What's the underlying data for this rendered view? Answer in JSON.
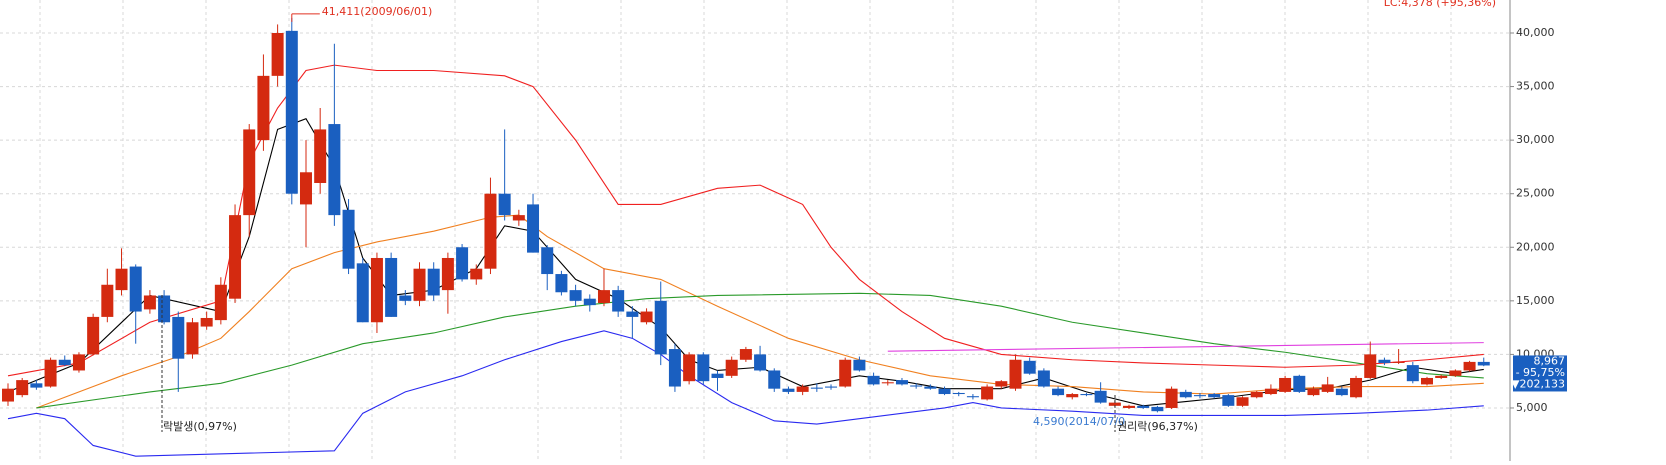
{
  "chart_data": {
    "type": "candlestick",
    "ylim": [
      50,
      43080
    ],
    "yticks": [
      {
        "value": 5000,
        "label": "5,000"
      },
      {
        "value": 10000,
        "label": "10,000"
      },
      {
        "value": 15000,
        "label": "15,000"
      },
      {
        "value": 20000,
        "label": "20,000"
      },
      {
        "value": 25000,
        "label": "25,000"
      },
      {
        "value": 30000,
        "label": "30,000"
      },
      {
        "value": 35000,
        "label": "35,000"
      },
      {
        "value": 40000,
        "label": "40,000"
      }
    ],
    "grid": true,
    "up_color": "#d42a10",
    "down_color": "#1a5fc0",
    "ohlc": [
      [
        5600,
        7300,
        5200,
        6800
      ],
      [
        6200,
        7800,
        6000,
        7600
      ],
      [
        7300,
        7600,
        6700,
        6900
      ],
      [
        7000,
        9700,
        6900,
        9500
      ],
      [
        9500,
        9900,
        8900,
        9000
      ],
      [
        8500,
        10200,
        8300,
        10000
      ],
      [
        10000,
        13800,
        9900,
        13500
      ],
      [
        13500,
        18000,
        13000,
        16500
      ],
      [
        16000,
        19900,
        15500,
        18000
      ],
      [
        18200,
        18400,
        11000,
        14000
      ],
      [
        14200,
        16000,
        13800,
        15500
      ],
      [
        15500,
        16000,
        12800,
        13000
      ],
      [
        13500,
        14000,
        6500,
        9600
      ],
      [
        10000,
        13400,
        9600,
        13000
      ],
      [
        12600,
        14000,
        12300,
        13400
      ],
      [
        13200,
        17200,
        12800,
        16500
      ],
      [
        15200,
        24000,
        14800,
        23000
      ],
      [
        23000,
        31500,
        21000,
        31000
      ],
      [
        30000,
        38000,
        29000,
        36000
      ],
      [
        36000,
        40800,
        35000,
        40000
      ],
      [
        40200,
        41411,
        24000,
        25000
      ],
      [
        24000,
        30000,
        20000,
        27000
      ],
      [
        26000,
        33000,
        25000,
        31000
      ],
      [
        31500,
        39000,
        22000,
        23000
      ],
      [
        23500,
        24500,
        17500,
        18000
      ],
      [
        18500,
        19000,
        13000,
        13000
      ],
      [
        13000,
        19500,
        12000,
        19000
      ],
      [
        19000,
        19500,
        13500,
        13500
      ],
      [
        15500,
        16000,
        14600,
        15000
      ],
      [
        15000,
        18600,
        14500,
        18000
      ],
      [
        18000,
        18600,
        15000,
        15500
      ],
      [
        16000,
        19500,
        13800,
        19000
      ],
      [
        20000,
        20300,
        16800,
        17000
      ],
      [
        17000,
        18400,
        16500,
        18000
      ],
      [
        18000,
        26500,
        17500,
        25000
      ],
      [
        25000,
        31000,
        22500,
        23000
      ],
      [
        22500,
        23500,
        22000,
        23000
      ],
      [
        24000,
        25000,
        19500,
        19500
      ],
      [
        20000,
        20200,
        16000,
        17500
      ],
      [
        17500,
        17800,
        15500,
        15800
      ],
      [
        16000,
        16500,
        14500,
        15000
      ],
      [
        15200,
        15600,
        14000,
        14600
      ],
      [
        14800,
        18000,
        14500,
        16000
      ],
      [
        16000,
        16400,
        13500,
        14000
      ],
      [
        14000,
        14500,
        11500,
        13500
      ],
      [
        13000,
        14300,
        12800,
        14000
      ],
      [
        15000,
        16800,
        9000,
        10000
      ],
      [
        10500,
        11000,
        6500,
        7000
      ],
      [
        7500,
        10200,
        7200,
        10000
      ],
      [
        10000,
        10200,
        7200,
        7500
      ],
      [
        8200,
        8500,
        6600,
        7800
      ],
      [
        8000,
        9800,
        7800,
        9500
      ],
      [
        9500,
        10700,
        9300,
        10500
      ],
      [
        10000,
        10800,
        8400,
        8500
      ],
      [
        8500,
        8700,
        6500,
        6800
      ],
      [
        6800,
        7000,
        6300,
        6500
      ],
      [
        6500,
        7200,
        6200,
        7000
      ],
      [
        6900,
        7300,
        6500,
        6800
      ],
      [
        7000,
        7200,
        6700,
        6900
      ],
      [
        7000,
        9700,
        6900,
        9500
      ],
      [
        9500,
        9800,
        8400,
        8500
      ],
      [
        8000,
        8300,
        7100,
        7200
      ],
      [
        7300,
        7600,
        7100,
        7400
      ],
      [
        7600,
        7800,
        7100,
        7200
      ],
      [
        7100,
        7300,
        6800,
        7000
      ],
      [
        7000,
        7200,
        6700,
        6800
      ],
      [
        6800,
        7000,
        6200,
        6300
      ],
      [
        6400,
        6500,
        6100,
        6300
      ],
      [
        6100,
        6300,
        5800,
        6000
      ],
      [
        5800,
        7200,
        5700,
        7000
      ],
      [
        7000,
        7600,
        6800,
        7500
      ],
      [
        6800,
        10000,
        6600,
        9500
      ],
      [
        9400,
        9700,
        8100,
        8200
      ],
      [
        8500,
        8700,
        6900,
        7000
      ],
      [
        6800,
        7000,
        6100,
        6200
      ],
      [
        6000,
        6400,
        5800,
        6300
      ],
      [
        6300,
        6400,
        6100,
        6200
      ],
      [
        6600,
        7400,
        5400,
        5500
      ],
      [
        5200,
        5700,
        5100,
        5500
      ],
      [
        5000,
        5300,
        4900,
        5200
      ],
      [
        5200,
        5300,
        4900,
        5000
      ],
      [
        5100,
        5200,
        4590,
        4700
      ],
      [
        5000,
        7000,
        4900,
        6800
      ],
      [
        6500,
        6700,
        5900,
        6000
      ],
      [
        6200,
        6400,
        5900,
        6100
      ],
      [
        6300,
        6400,
        5900,
        6000
      ],
      [
        6200,
        6300,
        5100,
        5200
      ],
      [
        5200,
        6100,
        5100,
        6000
      ],
      [
        6000,
        6600,
        5900,
        6500
      ],
      [
        6300,
        7200,
        6200,
        6800
      ],
      [
        6500,
        8000,
        6400,
        7800
      ],
      [
        8000,
        8100,
        6400,
        6500
      ],
      [
        6200,
        7000,
        6100,
        6800
      ],
      [
        6500,
        7900,
        6400,
        7200
      ],
      [
        6800,
        7000,
        6100,
        6200
      ],
      [
        6000,
        8000,
        5900,
        7800
      ],
      [
        7800,
        11200,
        7700,
        10000
      ],
      [
        9500,
        9700,
        9000,
        9200
      ],
      [
        9200,
        10500,
        9100,
        9300
      ],
      [
        9000,
        9300,
        7300,
        7500
      ],
      [
        7200,
        7900,
        7100,
        7800
      ],
      [
        7800,
        8100,
        7700,
        8000
      ],
      [
        8000,
        8600,
        7900,
        8500
      ],
      [
        8500,
        9400,
        8400,
        9300
      ],
      [
        9300,
        9700,
        8900,
        8967
      ]
    ],
    "lines": [
      {
        "color": "#000000",
        "x": [
          0,
          5,
          10,
          15,
          17,
          19,
          21,
          23,
          25,
          27,
          30,
          33,
          35,
          37,
          40,
          43,
          46,
          48,
          50,
          53,
          56,
          60,
          63,
          66,
          70,
          73,
          76,
          80,
          83,
          86,
          90,
          93,
          96,
          99,
          102,
          104
        ],
        "values": [
          6500,
          9200,
          15500,
          14000,
          21000,
          31000,
          32000,
          27500,
          19000,
          15500,
          16000,
          18000,
          22000,
          21500,
          17000,
          15200,
          12500,
          9500,
          8500,
          8800,
          7000,
          8000,
          7500,
          6800,
          6800,
          7800,
          6500,
          5200,
          5600,
          6000,
          6700,
          6800,
          7600,
          8800,
          8200,
          8600
        ]
      },
      {
        "color": "#f08020",
        "x": [
          2,
          8,
          12,
          15,
          17,
          20,
          23,
          26,
          30,
          34,
          36,
          38,
          42,
          46,
          50,
          55,
          60,
          65,
          70,
          75,
          80,
          85,
          90,
          95,
          100,
          104
        ],
        "values": [
          5000,
          8000,
          9800,
          11500,
          14000,
          18000,
          19500,
          20500,
          21500,
          22800,
          23000,
          21000,
          18000,
          17000,
          14500,
          11500,
          9500,
          8000,
          7200,
          7000,
          6500,
          6300,
          6800,
          7000,
          7000,
          7300
        ]
      },
      {
        "color": "#2a9a2a",
        "x": [
          2,
          10,
          15,
          20,
          25,
          30,
          35,
          40,
          45,
          50,
          60,
          65,
          70,
          75,
          80,
          85,
          90,
          95,
          100,
          104
        ],
        "values": [
          5000,
          6500,
          7300,
          9000,
          11000,
          12000,
          13500,
          14500,
          15200,
          15500,
          15700,
          15500,
          14500,
          13000,
          12000,
          11000,
          10200,
          9200,
          8200,
          7800
        ]
      },
      {
        "color": "#f02020",
        "x": [
          0,
          5,
          10,
          15,
          17,
          19,
          21,
          23,
          26,
          30,
          35,
          37,
          40,
          43,
          46,
          50,
          53,
          56,
          58,
          60,
          63,
          66,
          70,
          75,
          80,
          85,
          90,
          95,
          100,
          104
        ],
        "values": [
          8000,
          9200,
          13000,
          15000,
          28000,
          33000,
          36500,
          37000,
          36500,
          36500,
          36000,
          35000,
          30000,
          24000,
          24000,
          25500,
          25800,
          24000,
          20000,
          17000,
          14000,
          11500,
          10000,
          9500,
          9200,
          9000,
          8800,
          9000,
          9500,
          10000
        ]
      },
      {
        "color": "#2a2af0",
        "x": [
          0,
          2,
          4,
          6,
          9,
          23,
          25,
          28,
          32,
          35,
          39,
          42,
          44,
          46,
          48,
          51,
          54,
          57,
          60,
          66,
          68,
          70,
          75,
          80,
          85,
          90,
          95,
          100,
          104
        ],
        "values": [
          4000,
          4500,
          4000,
          1500,
          500,
          1000,
          4500,
          6500,
          8000,
          9500,
          11200,
          12200,
          11500,
          10000,
          8000,
          5500,
          3800,
          3500,
          4000,
          5000,
          5500,
          5000,
          4700,
          4300,
          4300,
          4300,
          4500,
          4800,
          5200
        ]
      },
      {
        "color": "#e040e0",
        "x": [
          62,
          104
        ],
        "values": [
          10300,
          11100
        ]
      }
    ],
    "annotations": [
      "41,411(2009/06/01)",
      "4,590(2014/07/0",
      "락발생(0,97%)",
      "권리락(96,37%)"
    ],
    "top_label": "LC:4,378 (+95,36%)",
    "last_price_box": [
      "8,967",
      "- 95,75%",
      "▼202,133"
    ]
  }
}
